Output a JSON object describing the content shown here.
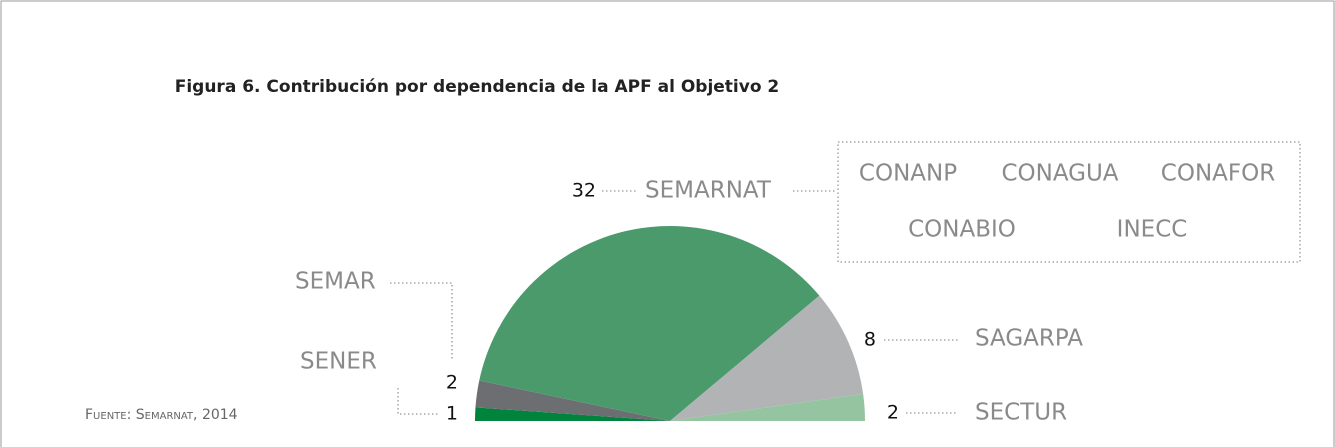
{
  "chart_data": {
    "type": "half-pie",
    "title": "Figura 6. Contribución por dependencia de la APF al Objetivo 2",
    "categories": [
      "SENER",
      "SEMAR",
      "SEMARNAT",
      "SAGARPA",
      "SECTUR"
    ],
    "values": [
      1,
      2,
      32,
      8,
      2
    ],
    "colors": [
      "#00843d",
      "#6d6e71",
      "#4a9a6c",
      "#b1b3b5",
      "#94c4a0"
    ],
    "semarnat_agencies": [
      "CONANP",
      "CONAGUA",
      "CONAFOR",
      "CONABIO",
      "INECC"
    ],
    "source": "Fuente: Semarnat, 2014"
  }
}
